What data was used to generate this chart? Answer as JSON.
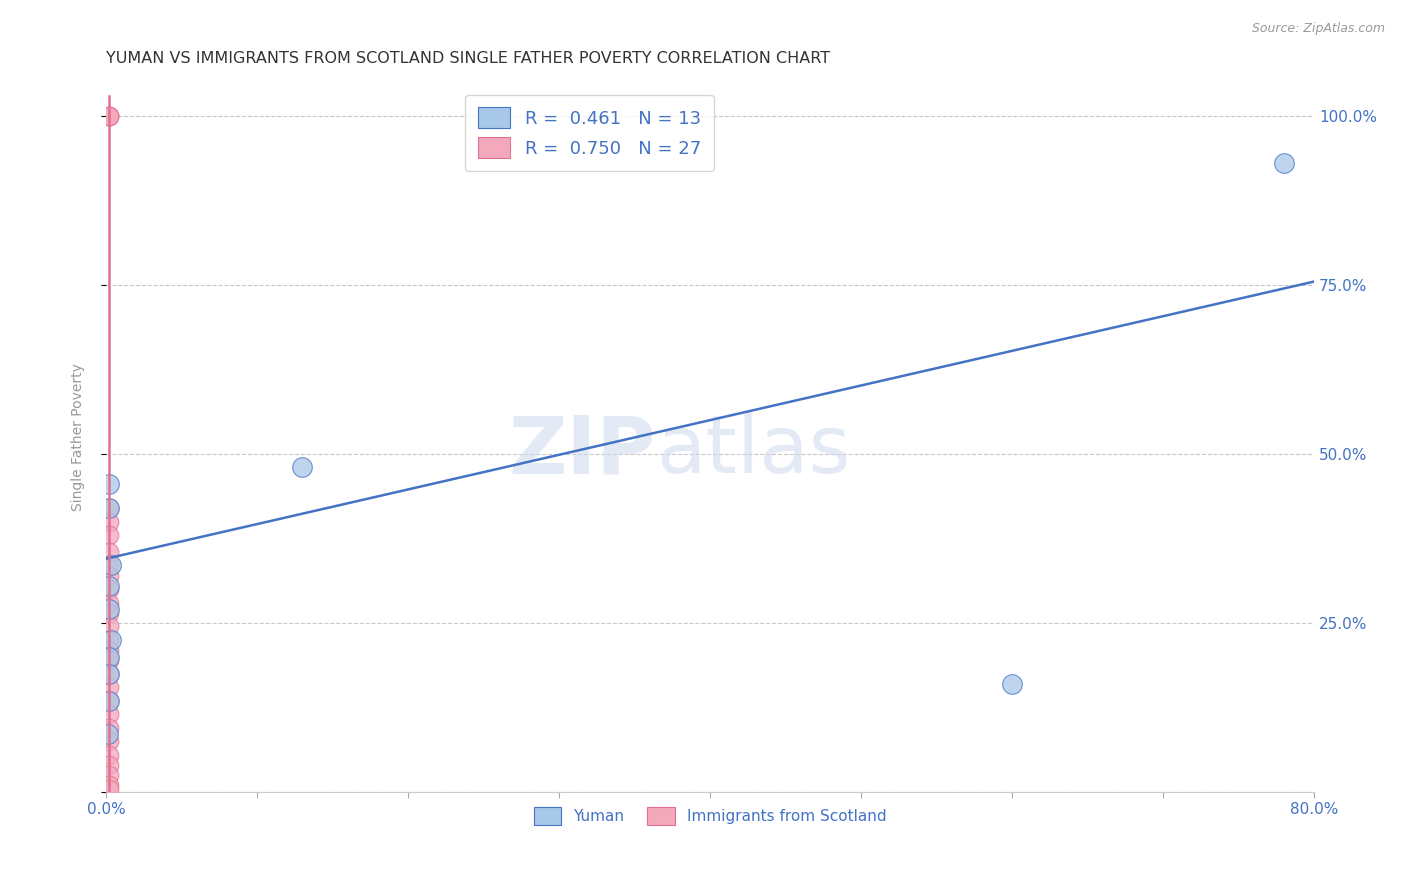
{
  "title": "YUMAN VS IMMIGRANTS FROM SCOTLAND SINGLE FATHER POVERTY CORRELATION CHART",
  "source": "Source: ZipAtlas.com",
  "ylabel": "Single Father Poverty",
  "xlim": [
    0.0,
    0.8
  ],
  "ylim": [
    0.0,
    1.05
  ],
  "xticks": [
    0.0,
    0.1,
    0.2,
    0.3,
    0.4,
    0.5,
    0.6,
    0.7,
    0.8
  ],
  "xtick_labels": [
    "0.0%",
    "",
    "",
    "",
    "",
    "",
    "",
    "",
    "80.0%"
  ],
  "ytick_positions": [
    0.0,
    0.25,
    0.5,
    0.75,
    1.0
  ],
  "ytick_labels": [
    "",
    "25.0%",
    "50.0%",
    "75.0%",
    "100.0%"
  ],
  "yuman_x": [
    0.002,
    0.003,
    0.002,
    0.003,
    0.002,
    0.002,
    0.001,
    0.002,
    0.002,
    0.13,
    0.6,
    0.78,
    0.002
  ],
  "yuman_y": [
    0.455,
    0.335,
    0.305,
    0.225,
    0.2,
    0.175,
    0.085,
    0.27,
    0.42,
    0.48,
    0.16,
    0.93,
    0.135
  ],
  "scotland_x": [
    0.002,
    0.002,
    0.002,
    0.002,
    0.002,
    0.002,
    0.002,
    0.002,
    0.002,
    0.002,
    0.002,
    0.002,
    0.002,
    0.002,
    0.002,
    0.002,
    0.002,
    0.002,
    0.002,
    0.002,
    0.002,
    0.002,
    0.002,
    0.002,
    0.002,
    0.002,
    0.002
  ],
  "scotland_y": [
    1.0,
    1.0,
    1.0,
    0.42,
    0.4,
    0.38,
    0.355,
    0.335,
    0.32,
    0.3,
    0.28,
    0.265,
    0.245,
    0.225,
    0.21,
    0.195,
    0.175,
    0.155,
    0.135,
    0.115,
    0.095,
    0.075,
    0.055,
    0.04,
    0.025,
    0.01,
    0.004
  ],
  "yuman_R": 0.461,
  "yuman_N": 13,
  "scotland_R": 0.75,
  "scotland_N": 27,
  "blue_line_x": [
    0.0,
    0.8
  ],
  "blue_line_y": [
    0.345,
    0.755
  ],
  "pink_line_x": [
    0.002,
    0.002
  ],
  "pink_line_y": [
    1.03,
    0.0
  ],
  "yuman_color": "#a8c8e8",
  "scotland_color": "#f4a8bc",
  "blue_line_color": "#4472c4",
  "pink_line_color": "#e07090",
  "watermark_zip": "ZIP",
  "watermark_atlas": "atlas",
  "background_color": "#ffffff",
  "title_color": "#333333",
  "axis_label_color": "#4472c4",
  "grid_color": "#c8c8c8"
}
